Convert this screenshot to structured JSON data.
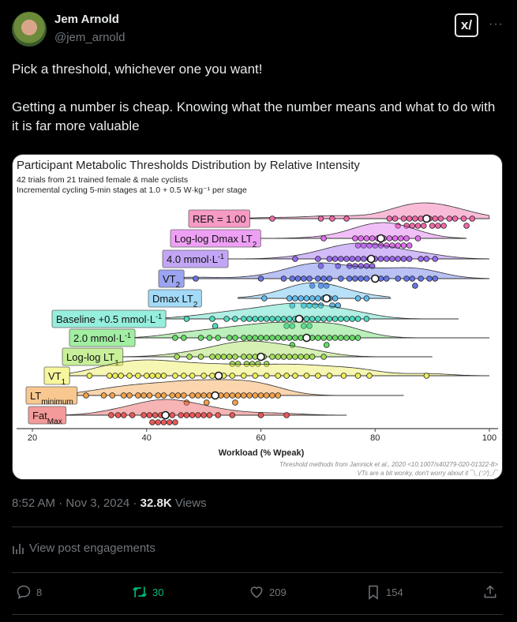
{
  "author": {
    "name": "Jem Arnold",
    "handle": "@jem_arnold"
  },
  "header": {
    "grok_icon": "grok-icon",
    "more_icon": "more-icon"
  },
  "post": {
    "line1": "Pick a threshold, whichever one you want!",
    "line2": "Getting a number is cheap. Knowing what the number means and what to do with it is far more valuable"
  },
  "meta": {
    "time": "8:52 AM",
    "sep": " · ",
    "date": "Nov 3, 2024",
    "views_count": "32.8K",
    "views_label": "Views"
  },
  "engagements_label": "View post engagements",
  "actions": {
    "replies": "8",
    "reposts": "30",
    "likes": "209",
    "bookmarks": "154"
  },
  "colors": {
    "repost": "#00ba7c",
    "muted": "#71767b"
  },
  "chart_data": {
    "type": "scatter",
    "title": "Participant Metabolic Thresholds Distribution by Relative Intensity",
    "subtitle1": "42 trials from 21 trained female & male cyclists",
    "subtitle2": "Incremental cycling 5-min stages at 1.0 + 0.5 W·kg⁻¹ per stage",
    "xlabel": "Workload (% Wpeak)",
    "xlim": [
      20,
      100
    ],
    "xticks": [
      "20",
      "40",
      "60",
      "80",
      "100"
    ],
    "note1": "Threshold methods from Jamnick et al., 2020 <10.1007/s40279-020-01322-8>",
    "note2": "VTs are a bit wonky, don't worry about it ¯\\_(ツ)_/¯",
    "series": [
      {
        "name": "RER = 1.00",
        "base": "RER = 1.00",
        "sub": "",
        "sup": "",
        "color": "#f06aa8",
        "box": "#f79ac4",
        "median": 89,
        "end": 100,
        "points": [
          62,
          70.5,
          72.5,
          75,
          82.5,
          83.5,
          84,
          85,
          85.5,
          86,
          86.5,
          87,
          87.5,
          88,
          88.5,
          89.5,
          90,
          90.5,
          91,
          91.5,
          92,
          93,
          94,
          95.5,
          96,
          97
        ]
      },
      {
        "name": "Log-log Dmax LT2",
        "base": "Log-log Dmax LT",
        "sub": "2",
        "sup": "",
        "color": "#e070ee",
        "box": "#eea0f5",
        "median": 81,
        "end": 96,
        "points": [
          71,
          76.5,
          77,
          77.5,
          78,
          78.5,
          79,
          79.5,
          80,
          80.5,
          81,
          81.5,
          82,
          82.5,
          83,
          83.5,
          84,
          84.5,
          85,
          85.5,
          86,
          87.5
        ]
      },
      {
        "name": "4.0 mmol·L-1",
        "base": "4.0 mmol·L",
        "sub": "",
        "sup": "-1",
        "color": "#9b68ee",
        "box": "#c2a6f5",
        "median": 79.3,
        "end": 100,
        "points": [
          66,
          70,
          70.5,
          72,
          73,
          73.5,
          74,
          75,
          75.5,
          76,
          76.5,
          77,
          77.5,
          78,
          78.5,
          79,
          79.5,
          80,
          81,
          82,
          83,
          84,
          85,
          86,
          88,
          89,
          90.5
        ]
      },
      {
        "name": "VT2",
        "base": "VT",
        "sub": "2",
        "sup": "",
        "color": "#6676e6",
        "box": "#9aa4f0",
        "median": 80,
        "end": 100,
        "points": [
          48.6,
          60,
          64,
          65.5,
          66.5,
          67.5,
          68.5,
          69,
          70,
          70.5,
          71,
          71.5,
          72,
          74,
          75.5,
          76.5,
          77.5,
          78.5,
          81,
          82,
          84,
          85.5,
          86.5,
          87,
          88,
          89.5,
          90.5
        ]
      },
      {
        "name": "Dmax LT2",
        "base": "Dmax LT",
        "sub": "2",
        "sup": "",
        "color": "#62bdf0",
        "box": "#a2daf7",
        "median": 71.5,
        "end": 82.7,
        "start": 56,
        "points": [
          60.6,
          65,
          65.5,
          66,
          67,
          67.5,
          68,
          68.5,
          69,
          69.5,
          70,
          70.5,
          71,
          72,
          72.5,
          73,
          73.5,
          77,
          78.5
        ]
      },
      {
        "name": "Baseline +0.5 mmol·L-1",
        "base": "Baseline +0.5 mmol·L",
        "sub": "",
        "sup": "-1",
        "color": "#50dcc0",
        "box": "#96eedc",
        "median": 66.7,
        "end": 94.6,
        "points": [
          47,
          51.5,
          52,
          54,
          55.5,
          57,
          58,
          59,
          60,
          61,
          62,
          63,
          64,
          64.5,
          65,
          65.5,
          66,
          67,
          67.5,
          68,
          68.5,
          69,
          70,
          71,
          72,
          73,
          74,
          75,
          76,
          77,
          78.5
        ]
      },
      {
        "name": "2.0 mmol·L-1",
        "base": "2.0 mmol·L",
        "sub": "",
        "sup": "-1",
        "color": "#68dc68",
        "box": "#a2eea2",
        "median": 68,
        "end": 100,
        "points": [
          45,
          46.5,
          49.5,
          51,
          52.5,
          54.5,
          55.5,
          57,
          58,
          59,
          60,
          61,
          62,
          63,
          64,
          65,
          65.5,
          66,
          67,
          69,
          70,
          71,
          71.5,
          72,
          73,
          74,
          75,
          76,
          77
        ]
      },
      {
        "name": "Log-log LT1",
        "base": "Log-log LT",
        "sub": "1",
        "sup": "",
        "color": "#a4de58",
        "box": "#c8f09a",
        "median": 60,
        "end": 90,
        "points": [
          45.3,
          47.5,
          49.5,
          51.5,
          52.5,
          53.5,
          54.5,
          55,
          55.5,
          56,
          57,
          57.5,
          58,
          58.5,
          59,
          59.5,
          60.5,
          61,
          62,
          63,
          64,
          65,
          66,
          67,
          68,
          69,
          71
        ]
      },
      {
        "name": "VT1",
        "base": "VT",
        "sub": "1",
        "sup": "",
        "color": "#eeee58",
        "box": "#f6f69c",
        "median": 52.6,
        "end": 100,
        "points": [
          30,
          33.5,
          34.5,
          35.5,
          37,
          38.5,
          40,
          41,
          42,
          43,
          45,
          46.5,
          48,
          50,
          51.5,
          53.5,
          55,
          57,
          59,
          61,
          63,
          64.5,
          66,
          68,
          70,
          72,
          74.5,
          77,
          79,
          89
        ]
      },
      {
        "name": "LTminimum",
        "base": "LT",
        "sub": "minimum",
        "sup": "",
        "color": "#f4a24a",
        "box": "#f8c890",
        "median": 52,
        "end": 85,
        "points": [
          29.4,
          32.5,
          34,
          36,
          37,
          38.5,
          39.5,
          40.5,
          42,
          43,
          44.5,
          45.5,
          46.5,
          47,
          48,
          49,
          50,
          50.5,
          51,
          53,
          54,
          55,
          55.5,
          56,
          57,
          58,
          59,
          60,
          61,
          62,
          63
        ]
      },
      {
        "name": "FatMax",
        "base": "Fat",
        "sub": "Max",
        "sup": "",
        "color": "#ec5858",
        "box": "#f49a9a",
        "median": 43.3,
        "end": 75,
        "points": [
          33.8,
          35,
          36,
          37.5,
          39.5,
          40.5,
          41,
          41.5,
          42,
          42.5,
          43,
          43.5,
          44,
          44.5,
          45,
          46,
          47,
          48,
          49,
          50,
          51,
          52.5,
          55,
          60,
          64.5
        ]
      }
    ]
  }
}
